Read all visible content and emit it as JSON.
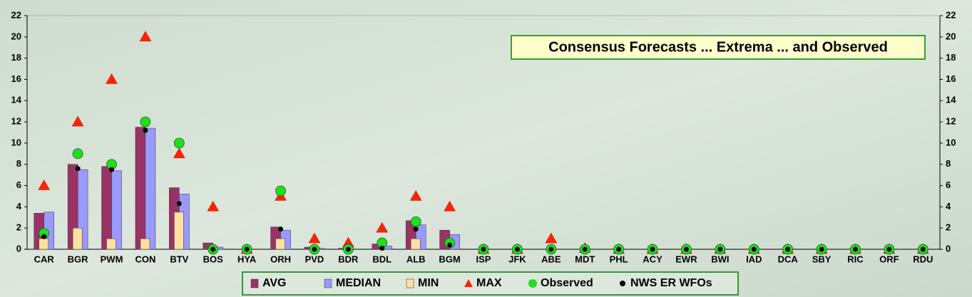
{
  "chart_data": {
    "type": "bar",
    "title": "Consensus Forecasts ... Extrema ... and Observed",
    "categories": [
      "CAR",
      "BGR",
      "PWM",
      "CON",
      "BTV",
      "BOS",
      "HYA",
      "ORH",
      "PVD",
      "BDR",
      "BDL",
      "ALB",
      "BGM",
      "ISP",
      "JFK",
      "ABE",
      "MDT",
      "PHL",
      "ACY",
      "EWR",
      "BWI",
      "IAD",
      "DCA",
      "SBY",
      "RIC",
      "ORF",
      "RDU"
    ],
    "series": [
      {
        "name": "AVG",
        "color": "#993366",
        "marker": "bar",
        "values": [
          3.4,
          8,
          7.8,
          11.5,
          5.8,
          0.6,
          0,
          2.1,
          0.2,
          0.1,
          0.5,
          2.7,
          1.8,
          0,
          0,
          0,
          0,
          0,
          0,
          0,
          0,
          0,
          0,
          0,
          0,
          0,
          0
        ]
      },
      {
        "name": "MEDIAN",
        "color": "#9999ff",
        "marker": "bar",
        "values": [
          3.5,
          7.5,
          7.4,
          11.4,
          5.2,
          0.2,
          0,
          1.8,
          0.1,
          0,
          0.3,
          2.3,
          1.4,
          0,
          0,
          0,
          0,
          0,
          0,
          0,
          0,
          0,
          0,
          0,
          0,
          0,
          0
        ]
      },
      {
        "name": "MIN",
        "color": "#ffe0a0",
        "marker": "bar",
        "values": [
          1,
          2,
          1,
          1,
          3.5,
          0,
          0,
          1,
          0,
          0,
          0,
          1,
          0,
          0,
          0,
          0,
          0,
          0,
          0,
          0,
          0,
          0,
          0,
          0,
          0,
          0,
          0
        ]
      },
      {
        "name": "MAX",
        "color": "#ff2200",
        "marker": "triangle",
        "values": [
          6,
          12,
          16,
          20,
          9,
          4,
          0,
          5,
          1,
          0.6,
          2,
          5,
          4,
          0,
          0,
          1,
          0.1,
          0,
          0,
          0,
          0,
          0,
          0,
          0,
          0,
          0,
          0
        ]
      },
      {
        "name": "Observed",
        "color": "#22dd22",
        "marker": "circle",
        "values": [
          1.5,
          9,
          8,
          12,
          10,
          0,
          0,
          5.5,
          0,
          0,
          0.6,
          2.6,
          0.6,
          0,
          0,
          0,
          0,
          0,
          0,
          0,
          0,
          0,
          0,
          0,
          0,
          0,
          0
        ]
      },
      {
        "name": "NWS ER WFOs",
        "color": "#000000",
        "marker": "dot",
        "values": [
          1.2,
          7.6,
          7.5,
          11.2,
          4.3,
          0,
          0,
          1.9,
          0,
          0,
          0.1,
          1.9,
          0.4,
          0,
          0,
          0,
          0,
          0,
          0,
          0,
          0,
          0,
          0,
          0,
          0,
          0,
          0
        ]
      }
    ],
    "ylim": [
      0,
      22
    ],
    "yticks": [
      0,
      2,
      4,
      6,
      8,
      10,
      12,
      14,
      16,
      18,
      20,
      22
    ],
    "y2lim": [
      0,
      22
    ],
    "y2ticks": [
      0,
      2,
      4,
      6,
      8,
      10,
      12,
      14,
      16,
      18,
      20,
      22
    ],
    "grid": false
  }
}
